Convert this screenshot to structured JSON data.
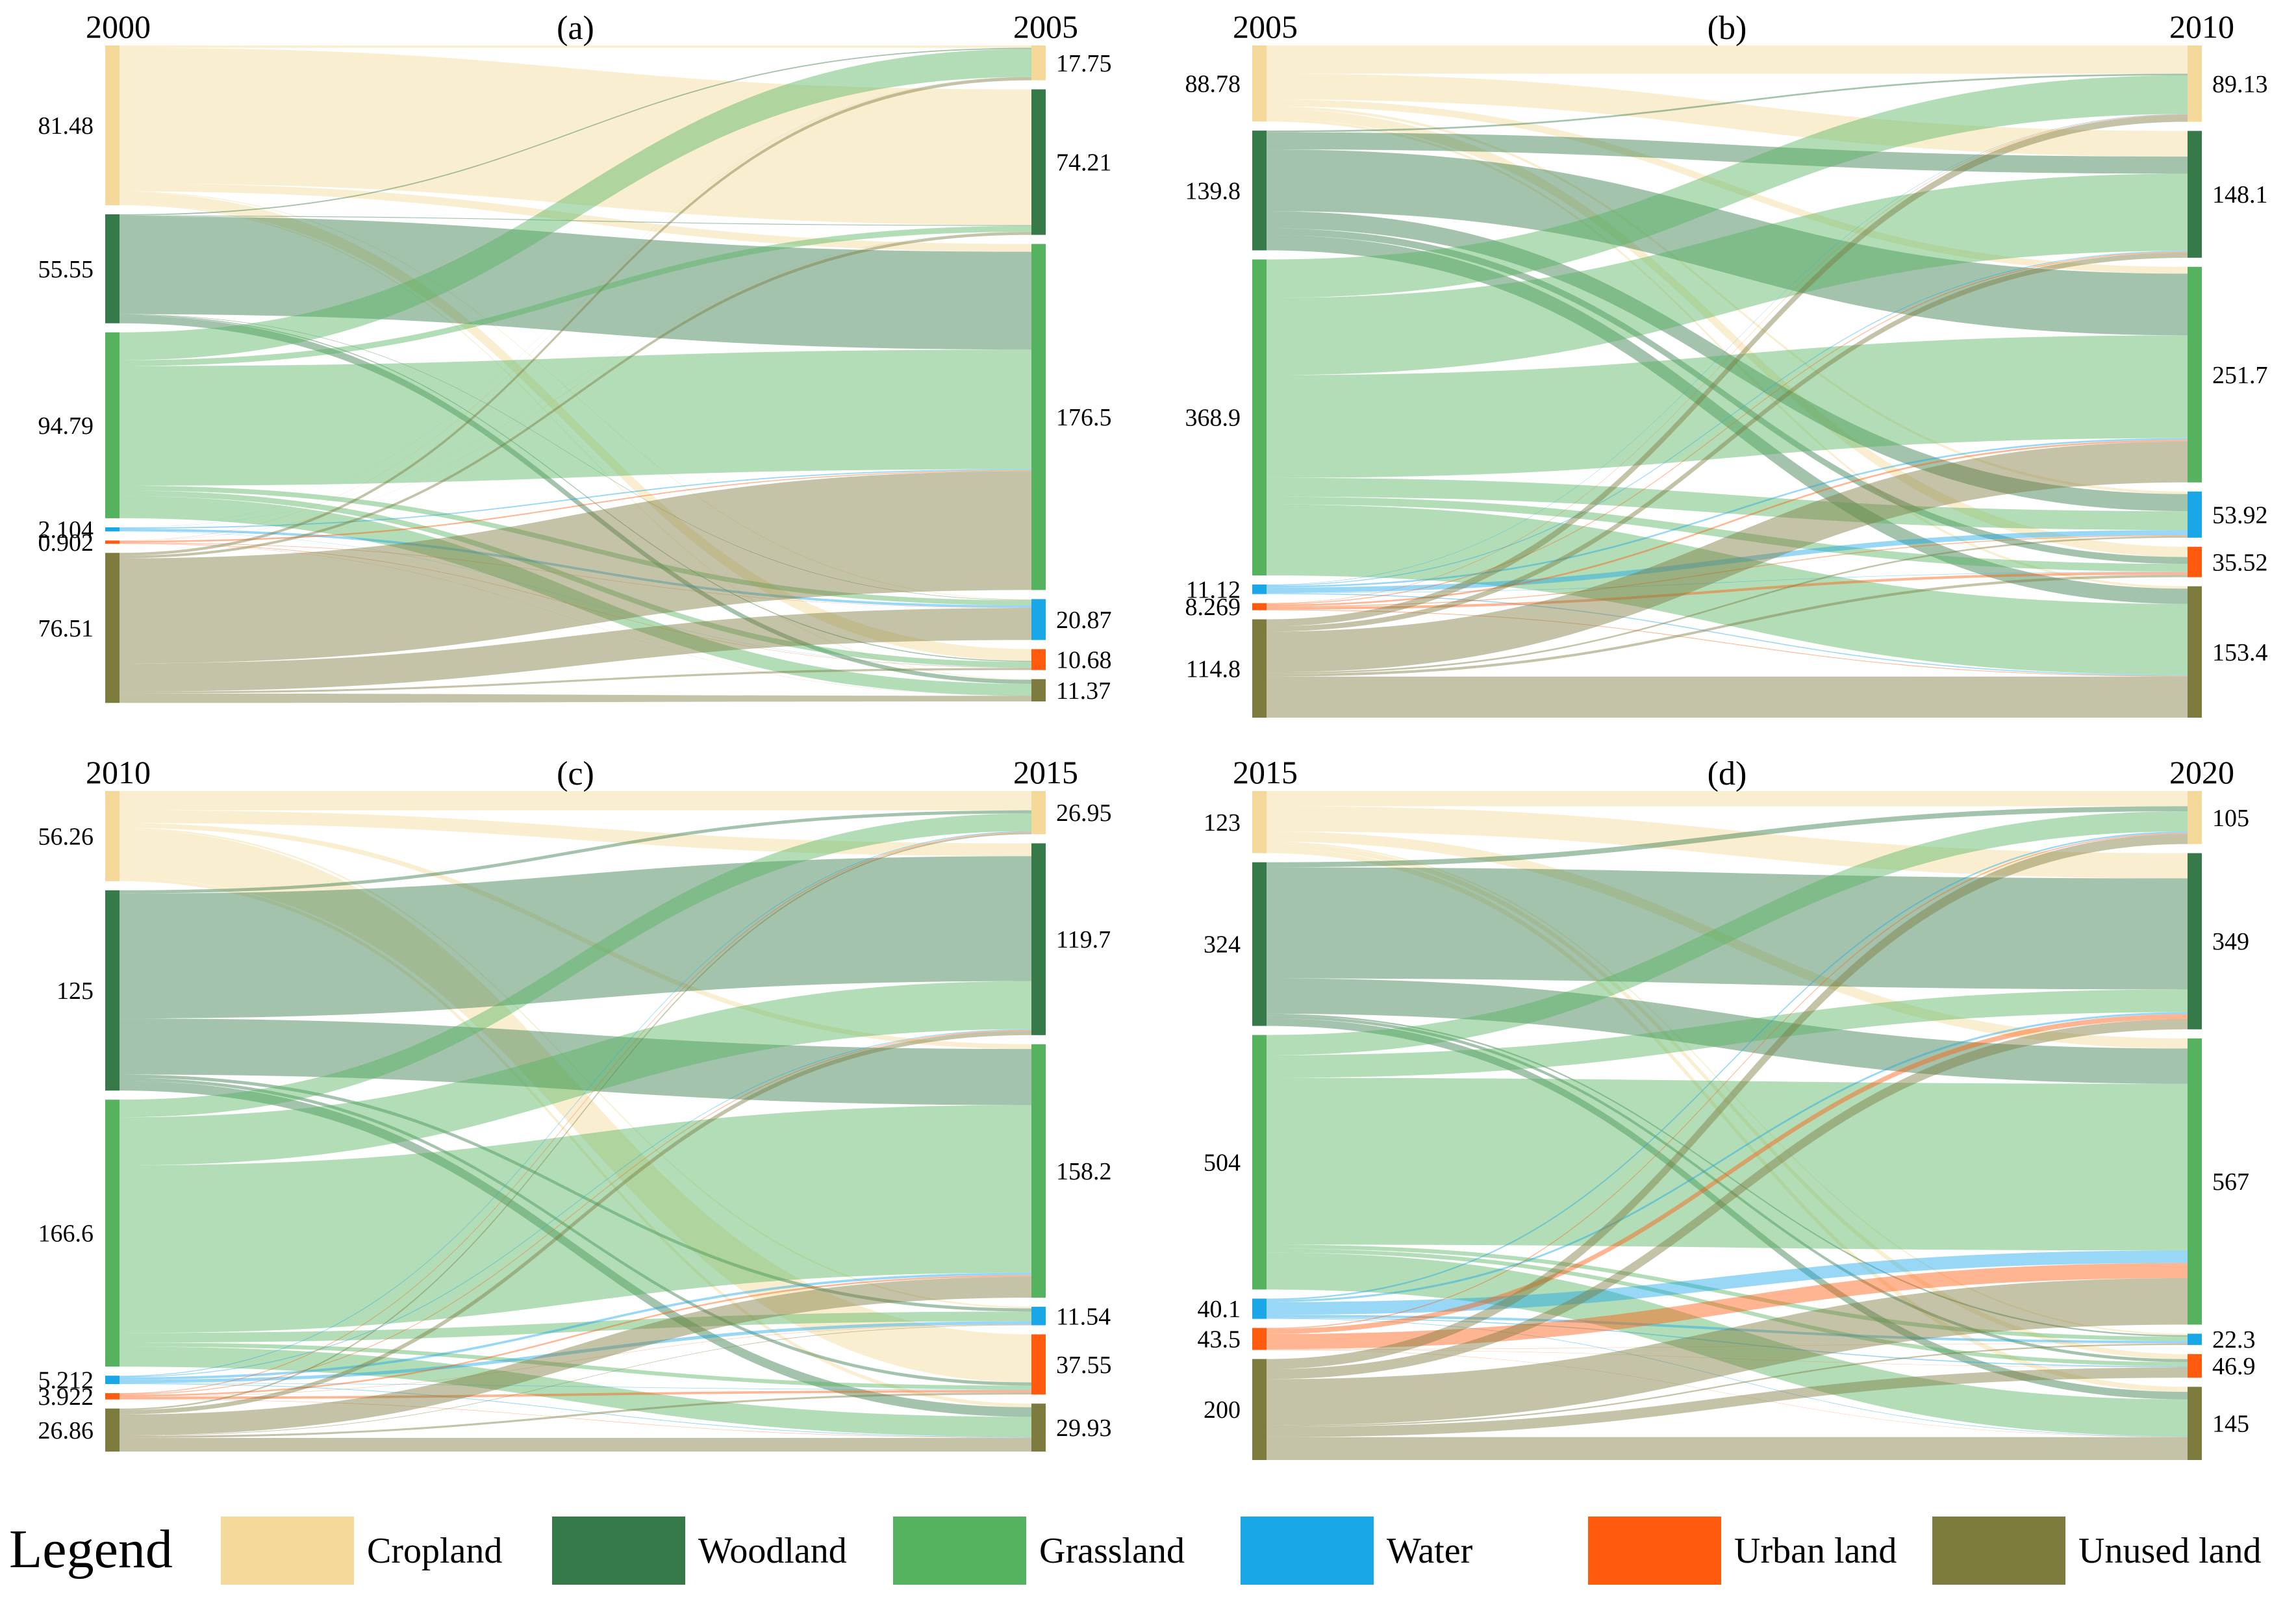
{
  "categories": [
    "Cropland",
    "Woodland",
    "Grassland",
    "Water",
    "Urban land",
    "Unused land"
  ],
  "colors": {
    "Cropland": "#f5d99a",
    "Woodland": "#357a48",
    "Grassland": "#55b35f",
    "Water": "#1aa7e8",
    "Urban land": "#ff5a0e",
    "Unused land": "#7d7b3d"
  },
  "legend": {
    "title": "Legend",
    "items": [
      "Cropland",
      "Woodland",
      "Grassland",
      "Water",
      "Urban land",
      "Unused land"
    ]
  },
  "chart_data": [
    {
      "type": "sankey",
      "panel_label": "(a)",
      "left_year": "2000",
      "right_year": "2005",
      "left_values": [
        81.48,
        55.55,
        94.79,
        2.104,
        0.902,
        76.51
      ],
      "left_labels": [
        "81.48",
        "55.55",
        "94.79",
        "2.104",
        "0.902",
        "76.51"
      ],
      "right_values": [
        17.75,
        74.21,
        176.5,
        20.87,
        10.68,
        11.37
      ],
      "right_labels": [
        "17.75",
        "74.21",
        "176.5",
        "20.87",
        "10.68",
        "11.37"
      ],
      "flows": [
        [
          1.2,
          69.2,
          4.0,
          0.4,
          6.0,
          0.68
        ],
        [
          0.6,
          0.4,
          49.9,
          0.25,
          0.5,
          3.9
        ],
        [
          14.2,
          3.0,
          61.0,
          2.5,
          2.8,
          11.29
        ],
        [
          0.05,
          0.05,
          0.6,
          1.25,
          0.12,
          0.034
        ],
        [
          0.05,
          0.03,
          0.45,
          0.15,
          0.15,
          0.072
        ],
        [
          1.6,
          1.5,
          60.6,
          16.3,
          1.1,
          5.41
        ]
      ]
    },
    {
      "type": "sankey",
      "panel_label": "(b)",
      "left_year": "2005",
      "right_year": "2010",
      "left_values": [
        88.78,
        139.8,
        368.9,
        11.12,
        8.269,
        114.8
      ],
      "left_labels": [
        "88.78",
        "139.8",
        "368.9",
        "11.12",
        "8.269",
        "114.8"
      ],
      "right_values": [
        89.13,
        148.1,
        251.7,
        53.92,
        35.52,
        153.4
      ],
      "right_labels": [
        "89.13",
        "148.1",
        "251.7",
        "53.92",
        "35.52",
        "153.4"
      ],
      "flows": [
        [
          33.0,
          30.0,
          8.0,
          3.0,
          12.0,
          2.78
        ],
        [
          2.0,
          20.0,
          72.0,
          20.0,
          8.0,
          17.8
        ],
        [
          45.0,
          90.0,
          120.0,
          22.0,
          9.0,
          82.9
        ],
        [
          0.5,
          1.0,
          2.0,
          6.0,
          0.5,
          1.12
        ],
        [
          0.5,
          1.0,
          2.0,
          1.0,
          3.0,
          0.769
        ],
        [
          8.13,
          6.1,
          47.7,
          1.92,
          3.02,
          47.93
        ]
      ]
    },
    {
      "type": "sankey",
      "panel_label": "(c)",
      "left_year": "2010",
      "right_year": "2015",
      "left_values": [
        56.26,
        125,
        166.6,
        5.212,
        3.922,
        26.86
      ],
      "left_labels": [
        "56.26",
        "125",
        "166.6",
        "5.212",
        "3.922",
        "26.86"
      ],
      "right_values": [
        26.95,
        119.7,
        158.2,
        11.54,
        37.55,
        29.93
      ],
      "right_labels": [
        "26.95",
        "119.7",
        "158.2",
        "11.54",
        "37.55",
        "29.93"
      ],
      "flows": [
        [
          12.0,
          8.0,
          3.0,
          1.0,
          30.0,
          2.26
        ],
        [
          2.0,
          78.0,
          35.0,
          2.0,
          2.0,
          6.0
        ],
        [
          11.0,
          30.0,
          104.6,
          6.0,
          2.5,
          12.5
        ],
        [
          0.5,
          0.5,
          1.5,
          2.0,
          0.3,
          0.412
        ],
        [
          0.5,
          0.5,
          1.0,
          0.2,
          1.5,
          0.222
        ],
        [
          0.95,
          2.7,
          13.1,
          0.34,
          1.25,
          8.518
        ]
      ]
    },
    {
      "type": "sankey",
      "panel_label": "(d)",
      "left_year": "2015",
      "right_year": "2020",
      "left_values": [
        123,
        324,
        504,
        40.1,
        43.5,
        200
      ],
      "left_labels": [
        "123",
        "324",
        "504",
        "40.1",
        "43.5",
        "200"
      ],
      "right_values": [
        105,
        349,
        567,
        22.3,
        46.9,
        145
      ],
      "right_labels": [
        "105",
        "349",
        "567",
        "22.3",
        "46.9",
        "145"
      ],
      "flows": [
        [
          30.0,
          50.0,
          20.0,
          3.0,
          10.0,
          10.0
        ],
        [
          10.0,
          220.0,
          70.0,
          3.0,
          6.0,
          15.0
        ],
        [
          40.0,
          45.0,
          330.0,
          8.0,
          8.0,
          73.0
        ],
        [
          3.0,
          4.0,
          25.0,
          5.0,
          2.0,
          1.1
        ],
        [
          2.0,
          10.0,
          30.0,
          0.5,
          0.5,
          0.5
        ],
        [
          20.0,
          20.0,
          92.0,
          2.8,
          20.4,
          45.4
        ]
      ]
    }
  ]
}
